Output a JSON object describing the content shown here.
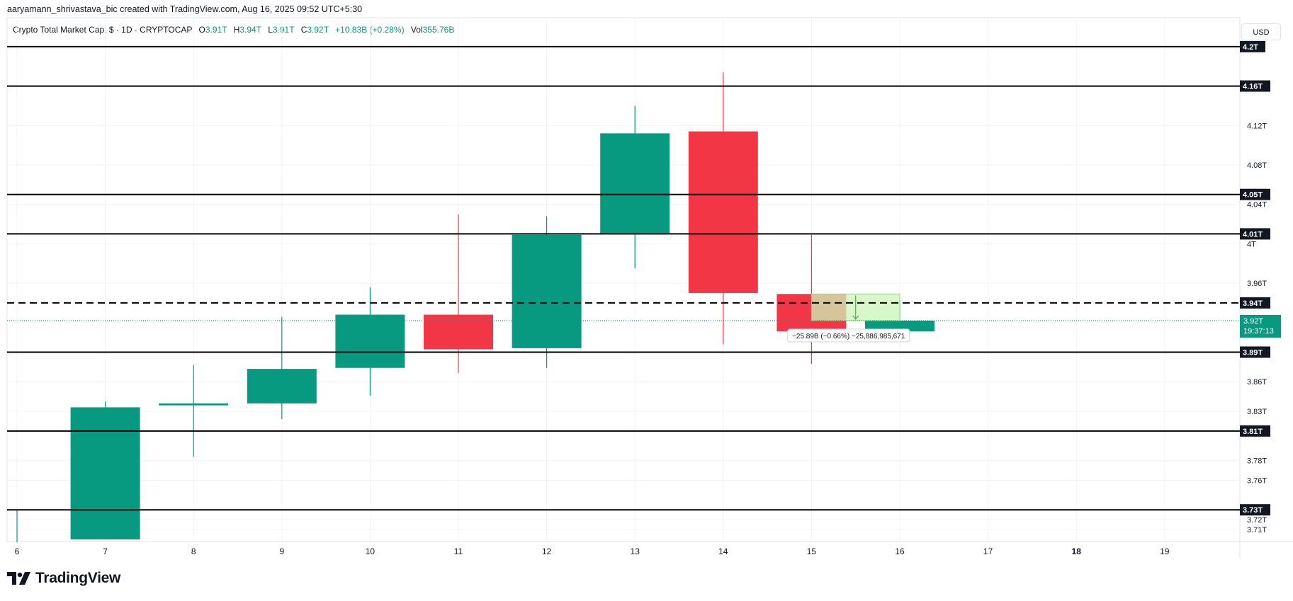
{
  "header": {
    "attribution": "aaryamann_shrivastava_bic created with TradingView.com, Aug 16, 2025 09:52 UTC+5:30"
  },
  "legend": {
    "symbol": "Crypto Total Market Cap, $ · 1D · CRYPTOCAP",
    "o_label": "O",
    "o_value": "3.91T",
    "h_label": "H",
    "h_value": "3.94T",
    "l_label": "L",
    "l_value": "3.91T",
    "c_label": "C",
    "c_value": "3.92T",
    "change": "+10.83B (+0.28%)",
    "vol_label": "Vol",
    "vol_value": "355.76B"
  },
  "currency_button": "USD",
  "brand": {
    "logo_text": "TradingView"
  },
  "colors": {
    "up": "#089981",
    "down": "#f23645",
    "line": "#000000",
    "grid": "#f0f3fa",
    "measure_fill": "#ccf5b8"
  },
  "chart_data": {
    "type": "candlestick",
    "x_ticks": [
      "6",
      "7",
      "8",
      "9",
      "10",
      "11",
      "12",
      "13",
      "14",
      "15",
      "16",
      "17",
      "18",
      "19"
    ],
    "candles": [
      {
        "day": "6",
        "open": 3.697,
        "high": 3.73,
        "low": 3.697,
        "close": 3.697
      },
      {
        "day": "7",
        "open": 3.7,
        "high": 3.84,
        "low": 3.7,
        "close": 3.834
      },
      {
        "day": "8",
        "open": 3.836,
        "high": 3.877,
        "low": 3.784,
        "close": 3.838
      },
      {
        "day": "9",
        "open": 3.838,
        "high": 3.926,
        "low": 3.822,
        "close": 3.873
      },
      {
        "day": "10",
        "open": 3.874,
        "high": 3.956,
        "low": 3.846,
        "close": 3.928
      },
      {
        "day": "11",
        "open": 3.928,
        "high": 4.03,
        "low": 3.869,
        "close": 3.893
      },
      {
        "day": "12",
        "open": 3.894,
        "high": 4.028,
        "low": 3.874,
        "close": 4.009
      },
      {
        "day": "13",
        "open": 4.01,
        "high": 4.14,
        "low": 3.975,
        "close": 4.112
      },
      {
        "day": "14",
        "open": 4.114,
        "high": 4.174,
        "low": 3.898,
        "close": 3.95
      },
      {
        "day": "15",
        "open": 3.949,
        "high": 4.009,
        "low": 3.878,
        "close": 3.911
      },
      {
        "day": "16",
        "open": 3.911,
        "high": 3.941,
        "low": 3.911,
        "close": 3.922
      }
    ],
    "y_axis_ticks": [
      "4.12T",
      "4.08T",
      "4.04T",
      "4T",
      "3.96T",
      "3.86T",
      "3.83T",
      "3.78T",
      "3.76T",
      "3.72T",
      "3.71T"
    ],
    "ylim": [
      3.705,
      4.215
    ],
    "levels": [
      {
        "value": 4.2,
        "label": "4.2T",
        "style": "solid"
      },
      {
        "value": 4.16,
        "label": "4.16T",
        "style": "solid"
      },
      {
        "value": 4.05,
        "label": "4.05T",
        "style": "solid"
      },
      {
        "value": 4.01,
        "label": "4.01T",
        "style": "solid"
      },
      {
        "value": 3.94,
        "label": "3.94T",
        "style": "dashed"
      },
      {
        "value": 3.89,
        "label": "3.89T",
        "style": "solid"
      },
      {
        "value": 3.81,
        "label": "3.81T",
        "style": "solid"
      },
      {
        "value": 3.73,
        "label": "3.73T",
        "style": "solid"
      }
    ],
    "current_price": {
      "value": 3.922,
      "label": "3.92T",
      "countdown": "19:37:13"
    },
    "measure": {
      "start_day": "15",
      "end_day": "16",
      "top_value": 3.949,
      "bottom_value": 3.922,
      "label": "−25.89B (−0.66%) −25,886,985,671"
    }
  }
}
